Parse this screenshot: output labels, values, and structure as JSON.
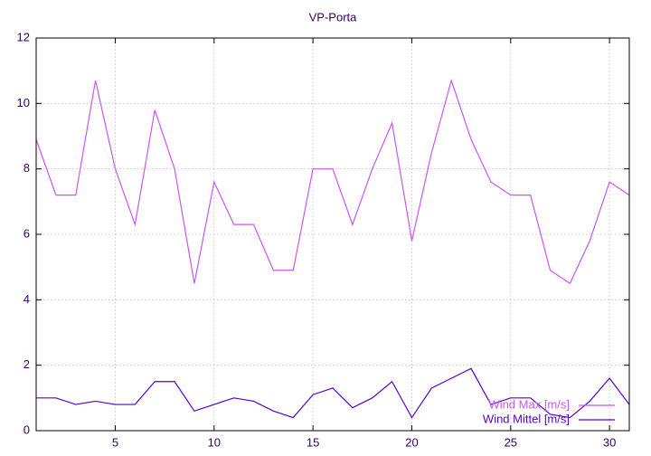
{
  "chart_data": {
    "type": "line",
    "title": "VP-Porta",
    "x": [
      1,
      2,
      3,
      4,
      5,
      6,
      7,
      8,
      9,
      10,
      11,
      12,
      13,
      14,
      15,
      16,
      17,
      18,
      19,
      20,
      21,
      22,
      23,
      24,
      25,
      26,
      27,
      28,
      29,
      30,
      31
    ],
    "series": [
      {
        "name": "Wind Max [m/s]",
        "color": "#cc55ee",
        "values": [
          8.9,
          7.2,
          7.2,
          10.7,
          8.0,
          6.3,
          9.8,
          8.0,
          4.5,
          7.6,
          6.3,
          6.3,
          4.9,
          4.9,
          8.0,
          8.0,
          6.3,
          8.0,
          9.4,
          5.8,
          8.5,
          10.7,
          8.9,
          7.6,
          7.2,
          7.2,
          4.9,
          4.5,
          5.8,
          7.6,
          7.2
        ]
      },
      {
        "name": "Wind Mittel [m/s]",
        "color": "#5500cc",
        "values": [
          1.0,
          1.0,
          0.8,
          0.9,
          0.8,
          0.8,
          1.5,
          1.5,
          0.6,
          0.8,
          1.0,
          0.9,
          0.6,
          0.4,
          1.1,
          1.3,
          0.7,
          1.0,
          1.5,
          0.4,
          1.3,
          1.6,
          1.9,
          0.8,
          1.0,
          1.0,
          0.5,
          0.4,
          0.9,
          1.6,
          0.8
        ]
      }
    ],
    "xlim": [
      1,
      31
    ],
    "xticks": [
      5,
      10,
      15,
      20,
      25,
      30
    ],
    "ylim": [
      0,
      12
    ],
    "yticks": [
      0,
      2,
      4,
      6,
      8,
      10,
      12
    ],
    "grid": true,
    "legend": "bottom-right"
  }
}
